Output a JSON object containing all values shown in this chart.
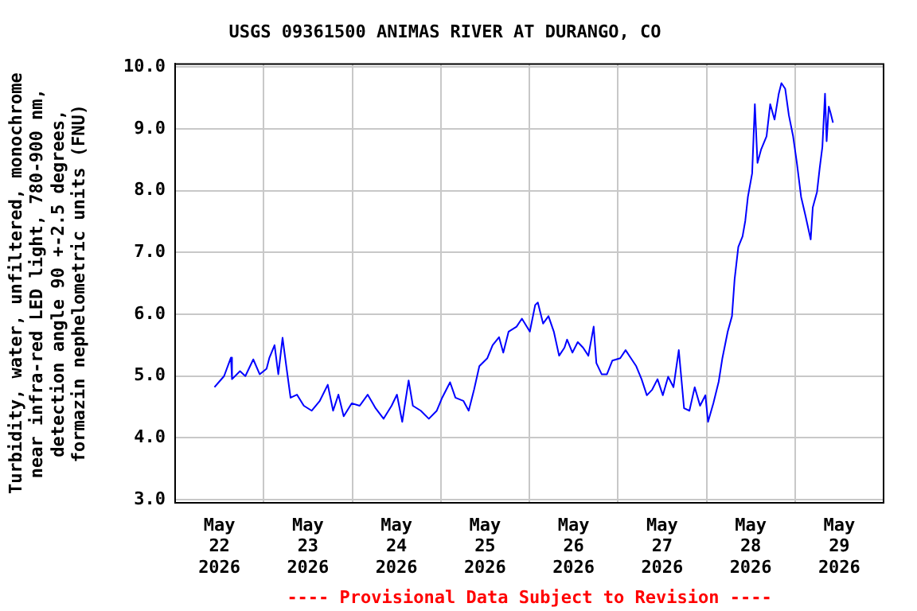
{
  "chart_data": {
    "type": "line",
    "title": "USGS 09361500 ANIMAS RIVER AT DURANGO, CO",
    "ylabel": "Turbidity, water, unfiltered, monochrome near infra-red LED light, 780-900 nm, detection angle 90 +-2.5 degrees, formazin nephelometric units (FNU)",
    "annotations": [
      "---- Provisional Data Subject to Revision ----"
    ],
    "xlim": [
      "2026-05-22T00:00",
      "2026-05-30T00:00"
    ],
    "xticks": [
      {
        "value": "2026-05-22T12:00",
        "label": "May 22 2026"
      },
      {
        "value": "2026-05-23T00:00",
        "label": null
      },
      {
        "value": "2026-05-23T12:00",
        "label": "May 23 2026"
      },
      {
        "value": "2026-05-24T00:00",
        "label": null
      },
      {
        "value": "2026-05-24T12:00",
        "label": "May 24 2026"
      },
      {
        "value": "2026-05-25T00:00",
        "label": null
      },
      {
        "value": "2026-05-25T12:00",
        "label": "May 25 2026"
      },
      {
        "value": "2026-05-26T00:00",
        "label": null
      },
      {
        "value": "2026-05-26T12:00",
        "label": "May 26 2026"
      },
      {
        "value": "2026-05-27T00:00",
        "label": null
      },
      {
        "value": "2026-05-27T12:00",
        "label": "May 27 2026"
      },
      {
        "value": "2026-05-28T00:00",
        "label": null
      },
      {
        "value": "2026-05-28T12:00",
        "label": "May 28 2026"
      },
      {
        "value": "2026-05-29T00:00",
        "label": null
      },
      {
        "value": "2026-05-29T12:00",
        "label": "May 29 2026"
      }
    ],
    "ylim": [
      2.95,
      10.05
    ],
    "yticks": [
      {
        "value": 3,
        "label": "3.0"
      },
      {
        "value": 4,
        "label": "4.0"
      },
      {
        "value": 5,
        "label": "5.0"
      },
      {
        "value": 6,
        "label": "6.0"
      },
      {
        "value": 7,
        "label": "7.0"
      },
      {
        "value": 8,
        "label": "8.0"
      },
      {
        "value": 9,
        "label": "9.0"
      },
      {
        "value": 10,
        "label": "10.0"
      }
    ],
    "grid": true,
    "marker": "none",
    "line_style": "solid",
    "series": [
      {
        "color": "#0000ff",
        "x": [
          "2026-05-22T10:40",
          "2026-05-22T11:49",
          "2026-05-22T13:16",
          "2026-05-22T15:08",
          "2026-05-22T15:25",
          "2026-05-22T17:35",
          "2026-05-22T19:02",
          "2026-05-22T21:11",
          "2026-05-22T22:55",
          "2026-05-23T00:47",
          "2026-05-23T01:31",
          "2026-05-23T02:57",
          "2026-05-23T03:58",
          "2026-05-23T05:07",
          "2026-05-23T06:08",
          "2026-05-23T07:17",
          "2026-05-23T09:01",
          "2026-05-23T10:53",
          "2026-05-23T13:02",
          "2026-05-23T15:13",
          "2026-05-23T17:22",
          "2026-05-23T18:49",
          "2026-05-23T20:15",
          "2026-05-23T21:41",
          "2026-05-23T23:52",
          "2026-05-24T02:01",
          "2026-05-24T04:11",
          "2026-05-24T06:20",
          "2026-05-24T08:30",
          "2026-05-24T10:40",
          "2026-05-24T12:07",
          "2026-05-24T13:33",
          "2026-05-24T15:17",
          "2026-05-24T16:26",
          "2026-05-24T18:35",
          "2026-05-24T20:46",
          "2026-05-24T22:55",
          "2026-05-25T00:22",
          "2026-05-25T02:31",
          "2026-05-25T03:58",
          "2026-05-25T06:07",
          "2026-05-25T07:34",
          "2026-05-25T09:01",
          "2026-05-25T10:27",
          "2026-05-25T12:37",
          "2026-05-25T14:03",
          "2026-05-25T15:47",
          "2026-05-25T16:56",
          "2026-05-25T18:23",
          "2026-05-25T20:32",
          "2026-05-25T21:59",
          "2026-05-26T00:08",
          "2026-05-26T01:35",
          "2026-05-26T02:18",
          "2026-05-26T03:44",
          "2026-05-26T05:11",
          "2026-05-26T06:38",
          "2026-05-26T08:04",
          "2026-05-26T09:31",
          "2026-05-26T10:14",
          "2026-05-26T11:40",
          "2026-05-26T13:07",
          "2026-05-26T14:34",
          "2026-05-26T16:00",
          "2026-05-26T17:26",
          "2026-05-26T18:10",
          "2026-05-26T19:36",
          "2026-05-26T21:02",
          "2026-05-26T22:29",
          "2026-05-27T00:38",
          "2026-05-27T02:05",
          "2026-05-27T03:32",
          "2026-05-27T04:58",
          "2026-05-27T06:25",
          "2026-05-27T07:51",
          "2026-05-27T09:17",
          "2026-05-27T10:44",
          "2026-05-27T12:11",
          "2026-05-27T13:37",
          "2026-05-27T15:04",
          "2026-05-27T16:30",
          "2026-05-27T17:56",
          "2026-05-27T19:23",
          "2026-05-27T20:49",
          "2026-05-27T22:16",
          "2026-05-27T23:43",
          "2026-05-28T00:26",
          "2026-05-28T01:52",
          "2026-05-28T03:19",
          "2026-05-28T04:19",
          "2026-05-28T05:46",
          "2026-05-28T06:55",
          "2026-05-28T07:38",
          "2026-05-28T08:38",
          "2026-05-28T09:47",
          "2026-05-28T10:31",
          "2026-05-28T11:14",
          "2026-05-28T12:23",
          "2026-05-28T13:07",
          "2026-05-28T13:50",
          "2026-05-28T14:50",
          "2026-05-28T16:17",
          "2026-05-28T17:17",
          "2026-05-28T18:27",
          "2026-05-28T19:36",
          "2026-05-28T20:19",
          "2026-05-28T21:20",
          "2026-05-28T22:20",
          "2026-05-28T23:29",
          "2026-05-29T00:30",
          "2026-05-29T01:39",
          "2026-05-29T02:49",
          "2026-05-29T04:15",
          "2026-05-29T04:49",
          "2026-05-29T05:58",
          "2026-05-29T06:42",
          "2026-05-29T07:25",
          "2026-05-29T08:08",
          "2026-05-29T08:34",
          "2026-05-29T09:09",
          "2026-05-29T09:35",
          "2026-05-29T10:18"
        ],
        "values": [
          4.82,
          4.9,
          5.0,
          5.3,
          4.95,
          5.08,
          5.0,
          5.27,
          5.03,
          5.12,
          5.29,
          5.5,
          5.03,
          5.62,
          5.16,
          4.65,
          4.7,
          4.52,
          4.44,
          4.6,
          4.86,
          4.44,
          4.7,
          4.35,
          4.56,
          4.52,
          4.7,
          4.48,
          4.31,
          4.52,
          4.7,
          4.26,
          4.93,
          4.52,
          4.44,
          4.31,
          4.44,
          4.65,
          4.9,
          4.65,
          4.6,
          4.44,
          4.78,
          5.16,
          5.29,
          5.5,
          5.63,
          5.38,
          5.72,
          5.8,
          5.93,
          5.72,
          6.15,
          6.19,
          5.85,
          5.97,
          5.72,
          5.33,
          5.46,
          5.59,
          5.38,
          5.55,
          5.46,
          5.33,
          5.8,
          5.21,
          5.03,
          5.03,
          5.25,
          5.29,
          5.42,
          5.29,
          5.16,
          4.95,
          4.69,
          4.78,
          4.95,
          4.69,
          4.99,
          4.82,
          5.42,
          4.48,
          4.44,
          4.82,
          4.52,
          4.69,
          4.26,
          4.56,
          4.91,
          5.29,
          5.72,
          5.97,
          6.57,
          7.09,
          7.26,
          7.51,
          7.9,
          8.28,
          9.4,
          8.45,
          8.67,
          8.88,
          9.4,
          9.15,
          9.57,
          9.74,
          9.65,
          9.22,
          8.88,
          8.45,
          7.9,
          7.6,
          7.21,
          7.73,
          7.98,
          8.37,
          8.71,
          9.57,
          8.8,
          9.36,
          9.27,
          9.1
        ]
      }
    ]
  }
}
